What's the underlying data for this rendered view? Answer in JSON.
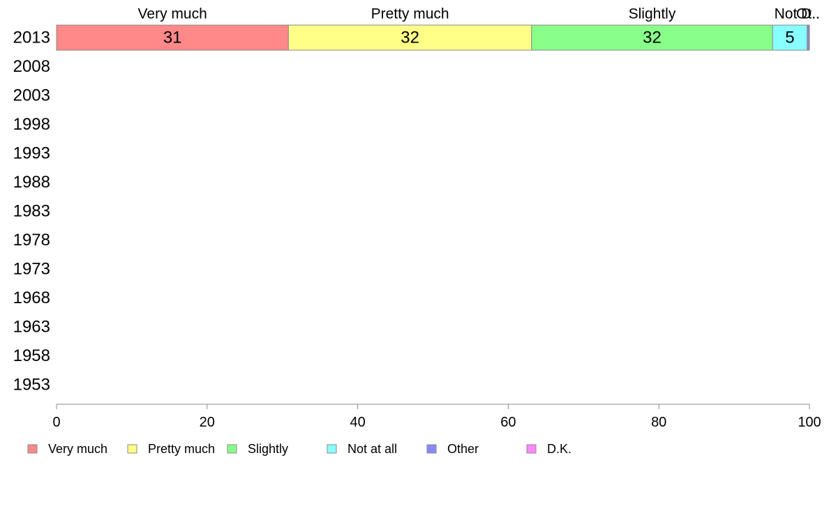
{
  "chart_data": {
    "type": "bar",
    "orientation": "horizontal",
    "stacked": true,
    "categories": [
      "2013",
      "2008",
      "2003",
      "1998",
      "1993",
      "1988",
      "1983",
      "1978",
      "1973",
      "1968",
      "1963",
      "1958",
      "1953"
    ],
    "series": [
      {
        "name": "Very much",
        "color": "#ff8888",
        "values": [
          30.8,
          null,
          null,
          null,
          null,
          null,
          null,
          null,
          null,
          null,
          null,
          null,
          null
        ],
        "value_labels": [
          "31"
        ]
      },
      {
        "name": "Pretty much",
        "color": "#ffff88",
        "values": [
          32.3,
          null,
          null,
          null,
          null,
          null,
          null,
          null,
          null,
          null,
          null,
          null,
          null
        ],
        "value_labels": [
          "32"
        ]
      },
      {
        "name": "Slightly",
        "color": "#88ff88",
        "values": [
          32.0,
          null,
          null,
          null,
          null,
          null,
          null,
          null,
          null,
          null,
          null,
          null,
          null
        ],
        "value_labels": [
          "32"
        ]
      },
      {
        "name": "Not at all",
        "color": "#88ffff",
        "values": [
          4.6,
          null,
          null,
          null,
          null,
          null,
          null,
          null,
          null,
          null,
          null,
          null,
          null
        ],
        "value_labels": [
          "5"
        ]
      },
      {
        "name": "Other",
        "color": "#8888ff",
        "values": [
          0.2,
          null,
          null,
          null,
          null,
          null,
          null,
          null,
          null,
          null,
          null,
          null,
          null
        ],
        "value_labels": [
          ""
        ]
      },
      {
        "name": "D.K.",
        "color": "#ff88ff",
        "values": [
          0.1,
          null,
          null,
          null,
          null,
          null,
          null,
          null,
          null,
          null,
          null,
          null,
          null
        ],
        "value_labels": [
          ""
        ]
      }
    ],
    "top_labels": [
      "Very much",
      "Pretty much",
      "Slightly",
      "Not",
      "Ot..",
      "D.."
    ],
    "xlim": [
      0,
      100
    ],
    "xticks": [
      "0",
      "20",
      "40",
      "60",
      "80",
      "100"
    ],
    "grid": false,
    "legend_position": "bottom-left"
  }
}
